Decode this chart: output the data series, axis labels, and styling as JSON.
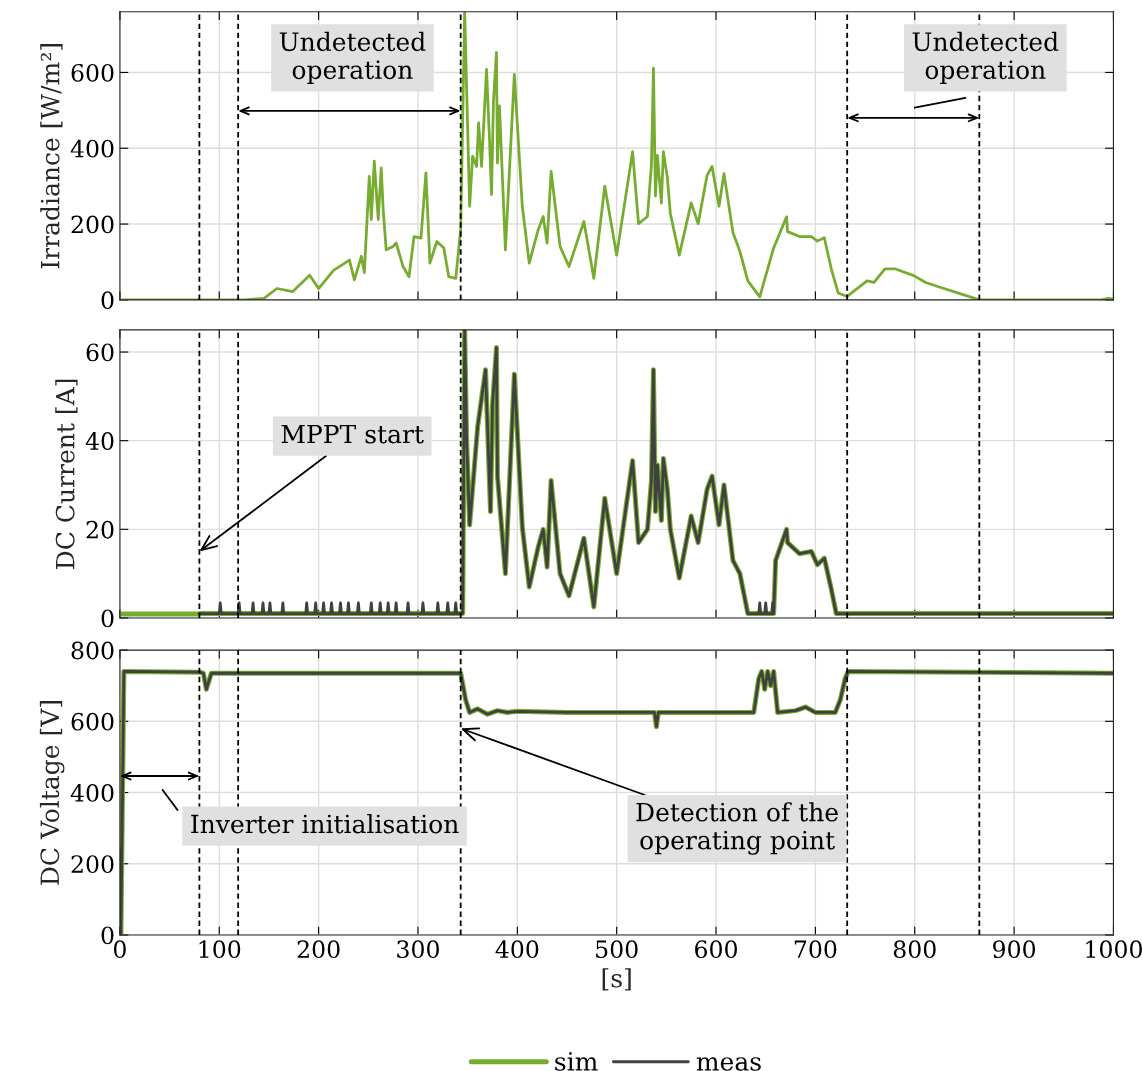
{
  "chart_data": [
    {
      "type": "line",
      "ylabel": "Irradiance [W/m²]",
      "xlim": [
        0,
        1000
      ],
      "xticks": [
        0,
        100,
        200,
        300,
        400,
        500,
        600,
        700,
        800,
        900,
        1000
      ],
      "ylim": [
        0,
        760
      ],
      "yticks": [
        0,
        200,
        400,
        600
      ],
      "grid": true,
      "tick_labels": "y",
      "series": [
        {
          "color": "#77ac30",
          "x": [
            0,
            126,
            145,
            158,
            174,
            191,
            200,
            215,
            231,
            236,
            243,
            246,
            251,
            253,
            256,
            260,
            263,
            265,
            268,
            275,
            278,
            285,
            291,
            296,
            303,
            308,
            312,
            319,
            326,
            331,
            338,
            343,
            347,
            352,
            355,
            359,
            361,
            364,
            369,
            372,
            374,
            376,
            379,
            380,
            382,
            388,
            397,
            405,
            412,
            421,
            426,
            430,
            434,
            443,
            452,
            467,
            477,
            488,
            500,
            516,
            522,
            531,
            535,
            537,
            539,
            541,
            545,
            547,
            551,
            554,
            563,
            575,
            582,
            591,
            596,
            603,
            608,
            617,
            624,
            632,
            644,
            658,
            671,
            672,
            684,
            696,
            702,
            709,
            716,
            723,
            732,
            752,
            759,
            770,
            780,
            799,
            811,
            827,
            844,
            865,
            988,
            995,
            1000
          ],
          "values": [
            0,
            0,
            4,
            30,
            22,
            65,
            30,
            78,
            105,
            53,
            115,
            72,
            326,
            212,
            366,
            212,
            348,
            238,
            132,
            141,
            150,
            88,
            61,
            167,
            163,
            335,
            97,
            154,
            137,
            61,
            57,
            185,
            760,
            247,
            379,
            352,
            467,
            352,
            608,
            423,
            278,
            525,
            653,
            361,
            512,
            132,
            595,
            247,
            97,
            185,
            220,
            150,
            339,
            141,
            88,
            207,
            57,
            300,
            118,
            391,
            201,
            220,
            356,
            611,
            274,
            381,
            255,
            391,
            323,
            228,
            118,
            256,
            201,
            329,
            352,
            247,
            333,
            178,
            128,
            50,
            8,
            137,
            219,
            180,
            167,
            167,
            155,
            164,
            82,
            18,
            9,
            50,
            46,
            82,
            82,
            64,
            46,
            32,
            18,
            0,
            0,
            4,
            2
          ]
        }
      ],
      "ref_lines": [
        {
          "axis": "x",
          "value": 80,
          "color": "#000000",
          "line_style": "dashed"
        },
        {
          "axis": "x",
          "value": 119,
          "color": "#000000",
          "line_style": "dashed"
        },
        {
          "axis": "x",
          "value": 343,
          "color": "#000000",
          "line_style": "dashed"
        },
        {
          "axis": "x",
          "value": 732,
          "color": "#000000",
          "line_style": "dashed"
        },
        {
          "axis": "x",
          "value": 865,
          "color": "#000000",
          "line_style": "dashed"
        }
      ],
      "annotations": [
        "Undetected\noperation",
        "Undetected\noperation"
      ]
    },
    {
      "type": "line",
      "ylabel": "DC Current [A]",
      "xlim": [
        0,
        1000
      ],
      "xticks": [
        0,
        100,
        200,
        300,
        400,
        500,
        600,
        700,
        800,
        900,
        1000
      ],
      "ylim": [
        0,
        65
      ],
      "yticks": [
        0,
        20,
        40,
        60
      ],
      "grid": true,
      "tick_labels": "y",
      "series": [
        {
          "color": "#77ac30",
          "x": [
            0,
            80,
            81,
            345,
            347,
            349,
            352,
            360,
            368,
            373,
            375,
            379,
            380,
            388,
            397,
            405,
            412,
            421,
            426,
            430,
            434,
            443,
            452,
            467,
            477,
            488,
            500,
            516,
            522,
            531,
            535,
            537,
            539,
            541,
            545,
            547,
            551,
            554,
            563,
            575,
            582,
            591,
            596,
            603,
            608,
            617,
            624,
            632,
            658,
            660,
            671,
            672,
            684,
            696,
            702,
            709,
            716,
            721,
            1000
          ],
          "values": [
            0.9,
            0.9,
            1,
            1,
            65,
            40,
            21,
            43,
            56,
            24,
            48,
            61,
            32,
            10,
            55,
            20.5,
            7,
            16,
            20,
            11.5,
            31,
            10,
            5,
            18,
            2.5,
            27,
            10,
            35.5,
            17,
            20,
            31,
            56,
            24,
            34.5,
            22,
            36,
            29,
            20,
            9,
            23,
            17,
            29,
            32,
            21,
            30,
            13,
            10,
            1,
            1,
            13,
            20,
            17,
            14.5,
            15,
            12,
            13.5,
            6.5,
            1,
            1
          ]
        },
        {
          "color": "#404040",
          "x": [
            80,
            100,
            101,
            102,
            119,
            120,
            121,
            133,
            134,
            135,
            143,
            144,
            145,
            150,
            151,
            152,
            163,
            164,
            165,
            187,
            188,
            189,
            196,
            197,
            198,
            204,
            205,
            206,
            212,
            213,
            214,
            221,
            222,
            223,
            229,
            230,
            231,
            239,
            240,
            241,
            252,
            253,
            254,
            261,
            262,
            263,
            269,
            270,
            271,
            277,
            278,
            279,
            289,
            290,
            291,
            304,
            305,
            306,
            319,
            320,
            321,
            329,
            330,
            331,
            337,
            338,
            339,
            345,
            347,
            349,
            352,
            360,
            368,
            373,
            375,
            379,
            380,
            388,
            397,
            405,
            412,
            421,
            426,
            430,
            434,
            443,
            452,
            467,
            477,
            488,
            500,
            516,
            522,
            531,
            535,
            537,
            539,
            541,
            545,
            547,
            551,
            554,
            563,
            575,
            582,
            591,
            596,
            603,
            608,
            617,
            624,
            632,
            643,
            644,
            645,
            649,
            650,
            651,
            656,
            657,
            658,
            660,
            671,
            672,
            684,
            696,
            702,
            709,
            716,
            721,
            1000
          ],
          "values": [
            1,
            1,
            3.4,
            1,
            1,
            3.4,
            1,
            1,
            3.4,
            1,
            1,
            3.4,
            1,
            1,
            3.4,
            1,
            1,
            3.4,
            1,
            1,
            3.4,
            1,
            1,
            3.4,
            1,
            1,
            3.4,
            1,
            1,
            3.4,
            1,
            1,
            3.4,
            1,
            1,
            3.4,
            1,
            1,
            3.4,
            1,
            1,
            3.4,
            1,
            1,
            3.4,
            1,
            1,
            3.4,
            1,
            1,
            3.4,
            1,
            1,
            3.4,
            1,
            1,
            3.4,
            1,
            1,
            3.4,
            1,
            1,
            3.4,
            1,
            1,
            3.4,
            1,
            1,
            65,
            40,
            21,
            43,
            56,
            24,
            48,
            61,
            32,
            10,
            55,
            20.5,
            7,
            16,
            20,
            11.5,
            31,
            10,
            5,
            18,
            2.5,
            27,
            10,
            35.5,
            17,
            20,
            31,
            56,
            24,
            34.5,
            22,
            36,
            29,
            20,
            9,
            23,
            17,
            29,
            32,
            21,
            30,
            13,
            10,
            1,
            1,
            3.4,
            1,
            1,
            3.4,
            1,
            1,
            3.4,
            1,
            13,
            20,
            17,
            14.5,
            15,
            12,
            13.5,
            6.5,
            1,
            1
          ]
        }
      ],
      "ref_lines": [
        {
          "axis": "x",
          "value": 80,
          "color": "#000000",
          "line_style": "dashed"
        },
        {
          "axis": "x",
          "value": 119,
          "color": "#000000",
          "line_style": "dashed"
        },
        {
          "axis": "x",
          "value": 343,
          "color": "#000000",
          "line_style": "dashed"
        },
        {
          "axis": "x",
          "value": 732,
          "color": "#000000",
          "line_style": "dashed"
        },
        {
          "axis": "x",
          "value": 865,
          "color": "#000000",
          "line_style": "dashed"
        }
      ],
      "annotations": [
        {
          "text": "MPPT start",
          "x": 80,
          "y": 15
        }
      ]
    },
    {
      "type": "line",
      "ylabel": "DC Voltage [V]",
      "xlabel": "[s]",
      "xlim": [
        0,
        1000
      ],
      "xticks": [
        0,
        100,
        200,
        300,
        400,
        500,
        600,
        700,
        800,
        900,
        1000
      ],
      "ylim": [
        0,
        800
      ],
      "yticks": [
        0,
        200,
        400,
        600,
        800
      ],
      "grid": true,
      "legend": "bottom",
      "series": [
        {
          "name": "sim",
          "color": "#77ac30",
          "x": [
            0,
            1,
            4,
            80,
            84,
            87,
            92,
            150,
            250,
            343,
            348,
            352,
            360,
            370,
            380,
            390,
            400,
            450,
            500,
            538,
            540,
            542,
            600,
            638,
            643,
            646,
            649,
            652,
            655,
            658,
            662,
            680,
            690,
            700,
            720,
            725,
            730,
            733,
            1000
          ],
          "values": [
            240,
            0,
            740,
            738,
            735,
            690,
            735,
            735,
            735,
            735,
            660,
            625,
            635,
            620,
            630,
            625,
            628,
            625,
            625,
            625,
            585,
            625,
            625,
            625,
            720,
            740,
            690,
            740,
            700,
            740,
            625,
            630,
            640,
            625,
            625,
            660,
            720,
            740,
            735
          ]
        },
        {
          "name": "meas",
          "color": "#404040",
          "x": [
            0,
            1,
            4,
            80,
            84,
            87,
            92,
            150,
            250,
            343,
            348,
            352,
            360,
            370,
            380,
            390,
            400,
            450,
            500,
            538,
            540,
            542,
            600,
            638,
            643,
            646,
            649,
            652,
            655,
            658,
            662,
            680,
            690,
            700,
            720,
            725,
            730,
            733,
            1000
          ],
          "values": [
            240,
            0,
            740,
            738,
            735,
            690,
            735,
            735,
            735,
            735,
            660,
            625,
            635,
            620,
            630,
            625,
            628,
            625,
            625,
            625,
            585,
            625,
            625,
            625,
            720,
            740,
            690,
            740,
            700,
            740,
            625,
            630,
            640,
            625,
            625,
            660,
            720,
            740,
            735
          ]
        }
      ],
      "ref_lines": [
        {
          "axis": "x",
          "value": 80,
          "color": "#000000",
          "line_style": "dashed"
        },
        {
          "axis": "x",
          "value": 119,
          "color": "#000000",
          "line_style": "dashed"
        },
        {
          "axis": "x",
          "value": 343,
          "color": "#000000",
          "line_style": "dashed"
        },
        {
          "axis": "x",
          "value": 732,
          "color": "#000000",
          "line_style": "dashed"
        },
        {
          "axis": "x",
          "value": 865,
          "color": "#000000",
          "line_style": "dashed"
        }
      ],
      "annotations": [
        "Inverter initialisation",
        {
          "text": "Detection of the\noperating point",
          "x": 343,
          "y": 580
        }
      ]
    }
  ]
}
